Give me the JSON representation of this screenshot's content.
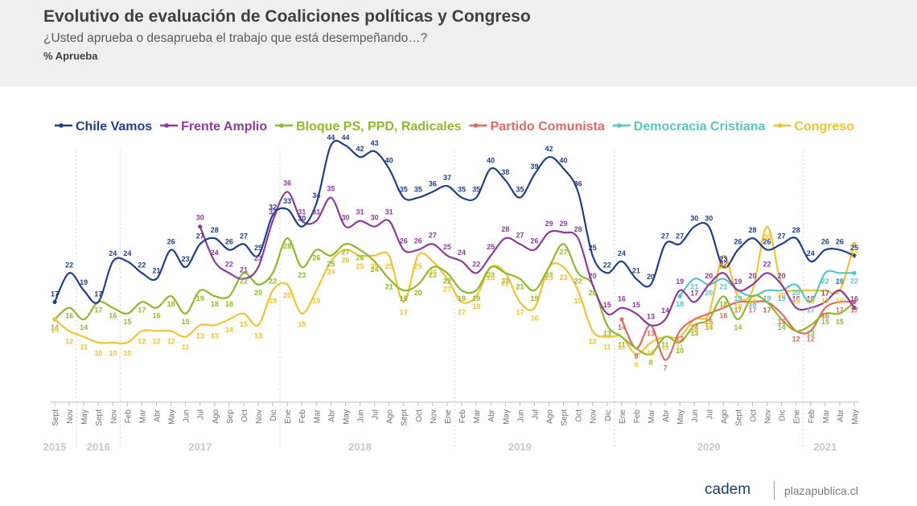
{
  "header": {
    "title": "Evolutivo de evaluación de Coaliciones políticas y Congreso",
    "subtitle": "¿Usted aprueba o desaprueba el trabajo que está desempeñando…?",
    "unit": "% Aprueba"
  },
  "footer": {
    "brand": "cadem",
    "link": "plazapublica.cl"
  },
  "chart_data": {
    "type": "line",
    "x": [
      "Sept",
      "Nov",
      "May",
      "Sept",
      "Nov",
      "Feb",
      "Mar",
      "Abr",
      "May",
      "Jun",
      "Jul",
      "Ago",
      "Sep",
      "Oct",
      "Nov",
      "Dic",
      "Ene",
      "Feb",
      "Mar",
      "Abr",
      "May",
      "Jun",
      "Jul",
      "Ago",
      "Sept",
      "Oct",
      "Nov",
      "Ene",
      "Feb",
      "Mar",
      "Abr",
      "May",
      "Jun",
      "Jul",
      "Ago",
      "Sept",
      "Oct",
      "Nov",
      "Dic",
      "Ene",
      "Feb",
      "Mar",
      "Abr",
      "May",
      "Jun",
      "Jul",
      "Ago",
      "Sept",
      "Oct",
      "Nov",
      "Dic",
      "Ene",
      "Feb",
      "Mar",
      "Abr",
      "May"
    ],
    "years": [
      {
        "label": "2015",
        "index": 0
      },
      {
        "label": "2016",
        "index": 3
      },
      {
        "label": "2017",
        "index": 10
      },
      {
        "label": "2018",
        "index": 21
      },
      {
        "label": "2019",
        "index": 32
      },
      {
        "label": "2020",
        "index": 45
      },
      {
        "label": "2021",
        "index": 53
      }
    ],
    "year_dividers": [
      1.5,
      4.5,
      15.5,
      27.5,
      38.5,
      51.5
    ],
    "ylim": [
      0,
      50
    ],
    "legend_position": "top",
    "series": [
      {
        "name": "Chile Vamos",
        "color": "#1f3f8c",
        "values": [
          17,
          22,
          19,
          17,
          24,
          24,
          22,
          21,
          26,
          23,
          27,
          28,
          26,
          27,
          25,
          32,
          33,
          30,
          34,
          44,
          44,
          42,
          43,
          40,
          35,
          35,
          36,
          37,
          35,
          35,
          40,
          38,
          35,
          39,
          42,
          40,
          36,
          25,
          22,
          24,
          21,
          20,
          27,
          27,
          30,
          30,
          23,
          26,
          28,
          26,
          27,
          28,
          24,
          26,
          26,
          25
        ]
      },
      {
        "name": "Frente Amplio",
        "color": "#8e3a9d",
        "values": [
          null,
          null,
          null,
          null,
          null,
          null,
          null,
          null,
          null,
          null,
          30,
          24,
          22,
          21,
          23,
          31,
          36,
          31,
          31,
          35,
          30,
          31,
          30,
          31,
          26,
          26,
          27,
          25,
          24,
          22,
          25,
          28,
          27,
          26,
          29,
          29,
          28,
          20,
          15,
          16,
          15,
          13,
          14,
          19,
          17,
          20,
          22,
          19,
          20,
          22,
          20,
          16,
          16,
          17,
          19,
          16
        ]
      },
      {
        "name": "Bloque PS, PPD, Radicales",
        "color": "#8fb82a",
        "values": [
          14,
          16,
          14,
          17,
          16,
          15,
          17,
          16,
          18,
          15,
          19,
          18,
          18,
          22,
          20,
          22,
          28,
          23,
          26,
          25,
          27,
          26,
          24,
          21,
          19,
          20,
          23,
          22,
          19,
          19,
          23,
          22,
          21,
          19,
          23,
          27,
          22,
          20,
          13,
          11,
          9,
          8,
          11,
          10,
          13,
          14,
          18,
          14,
          18,
          17,
          14,
          12,
          13,
          15,
          15,
          17
        ]
      },
      {
        "name": "Partido Comunista",
        "color": "#e2695e",
        "values": [
          null,
          null,
          null,
          null,
          null,
          null,
          null,
          null,
          null,
          null,
          null,
          null,
          null,
          null,
          null,
          null,
          null,
          null,
          null,
          null,
          null,
          null,
          null,
          null,
          null,
          null,
          null,
          null,
          null,
          null,
          null,
          null,
          null,
          null,
          null,
          null,
          null,
          null,
          null,
          14,
          9,
          13,
          7,
          12,
          14,
          15,
          16,
          17,
          17,
          17,
          15,
          12,
          12,
          16,
          17,
          17
        ]
      },
      {
        "name": "Democracia Cristiana",
        "color": "#58c4c4",
        "values": [
          null,
          null,
          null,
          null,
          null,
          null,
          null,
          null,
          null,
          null,
          null,
          null,
          null,
          null,
          null,
          null,
          null,
          null,
          null,
          null,
          null,
          null,
          null,
          null,
          null,
          null,
          null,
          null,
          null,
          null,
          null,
          null,
          null,
          null,
          null,
          null,
          null,
          null,
          null,
          null,
          null,
          null,
          null,
          18,
          21,
          20,
          21,
          19,
          18,
          19,
          19,
          20,
          17,
          22,
          22,
          22
        ]
      },
      {
        "name": "Congreso",
        "color": "#f1c232",
        "values": [
          14,
          12,
          11,
          10,
          10,
          10,
          12,
          12,
          12,
          11,
          13,
          13,
          14,
          15,
          13,
          19,
          20,
          15,
          19,
          24,
          26,
          25,
          25,
          25,
          17,
          25,
          24,
          21,
          17,
          18,
          23,
          22,
          17,
          16,
          23,
          23,
          19,
          12,
          11,
          11,
          8,
          10,
          11,
          11,
          14,
          15,
          25,
          18,
          19,
          30,
          20,
          19,
          19,
          19,
          19,
          27
        ]
      }
    ],
    "point_labels": {
      "Chile Vamos": [
        17,
        22,
        19,
        17,
        24,
        24,
        22,
        21,
        26,
        23,
        27,
        28,
        26,
        27,
        25,
        32,
        33,
        30,
        34,
        44,
        44,
        42,
        43,
        40,
        35,
        35,
        36,
        37,
        35,
        35,
        40,
        38,
        35,
        39,
        42,
        40,
        36,
        25,
        22,
        24,
        21,
        20,
        27,
        27,
        30,
        30,
        23,
        26,
        28,
        26,
        27,
        28,
        24,
        26,
        26,
        25
      ],
      "Frente Amplio": [
        null,
        null,
        null,
        null,
        null,
        null,
        null,
        null,
        null,
        null,
        30,
        24,
        22,
        21,
        23,
        31,
        36,
        31,
        31,
        35,
        30,
        31,
        30,
        31,
        26,
        26,
        27,
        25,
        24,
        22,
        25,
        28,
        27,
        26,
        29,
        29,
        28,
        20,
        15,
        16,
        15,
        13,
        14,
        19,
        17,
        20,
        22,
        19,
        20,
        22,
        20,
        16,
        16,
        17,
        19,
        16
      ],
      "Bloque PS, PPD, Radicales": [
        14,
        16,
        14,
        17,
        16,
        15,
        17,
        16,
        18,
        15,
        19,
        18,
        18,
        22,
        20,
        22,
        28,
        23,
        26,
        25,
        27,
        26,
        24,
        21,
        19,
        20,
        23,
        22,
        19,
        19,
        23,
        22,
        21,
        19,
        23,
        27,
        22,
        20,
        13,
        11,
        9,
        8,
        11,
        10,
        13,
        14,
        18,
        14,
        18,
        17,
        14,
        12,
        13,
        15,
        15,
        17
      ],
      "Partido Comunista": [
        null,
        null,
        null,
        null,
        null,
        null,
        null,
        null,
        null,
        null,
        null,
        null,
        null,
        null,
        null,
        null,
        null,
        null,
        null,
        null,
        null,
        null,
        null,
        null,
        null,
        null,
        null,
        null,
        null,
        null,
        null,
        null,
        null,
        null,
        null,
        null,
        null,
        null,
        null,
        14,
        9,
        13,
        7,
        12,
        14,
        15,
        16,
        17,
        17,
        17,
        15,
        12,
        12,
        16,
        17,
        17
      ],
      "Democracia Cristiana": [
        null,
        null,
        null,
        null,
        null,
        null,
        null,
        null,
        null,
        null,
        null,
        null,
        null,
        null,
        null,
        null,
        null,
        null,
        null,
        null,
        null,
        null,
        null,
        null,
        null,
        null,
        null,
        null,
        null,
        null,
        null,
        null,
        null,
        null,
        null,
        null,
        null,
        null,
        null,
        null,
        null,
        null,
        null,
        18,
        21,
        20,
        21,
        19,
        18,
        19,
        19,
        20,
        17,
        22,
        22,
        22
      ],
      "Congreso": [
        14,
        12,
        11,
        10,
        10,
        10,
        12,
        12,
        12,
        11,
        13,
        13,
        14,
        15,
        13,
        19,
        20,
        15,
        19,
        24,
        26,
        25,
        25,
        25,
        17,
        25,
        24,
        21,
        17,
        18,
        23,
        22,
        17,
        16,
        23,
        23,
        19,
        12,
        11,
        11,
        8,
        10,
        11,
        11,
        14,
        15,
        25,
        18,
        19,
        30,
        20,
        19,
        19,
        19,
        19,
        27
      ]
    }
  }
}
